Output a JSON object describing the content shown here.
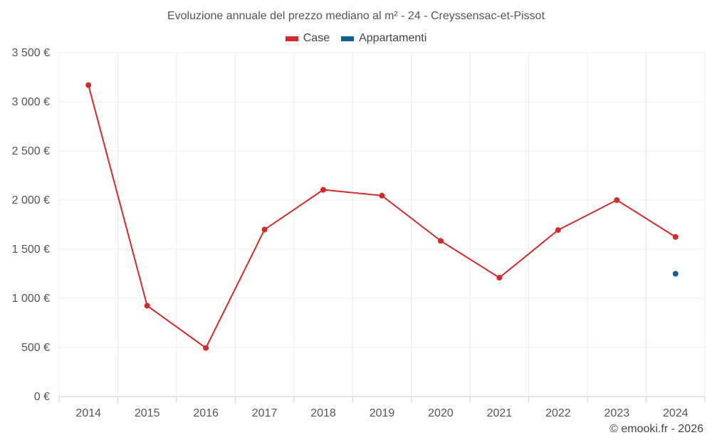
{
  "chart_data": {
    "type": "line",
    "title": "Evoluzione annuale del prezzo mediano al m² - 24 - Creyssensac-et-Pissot",
    "categories": [
      "2014",
      "2015",
      "2016",
      "2017",
      "2018",
      "2019",
      "2020",
      "2021",
      "2022",
      "2023",
      "2024"
    ],
    "series": [
      {
        "name": "Case",
        "color": "#d42a2a",
        "values": [
          3170,
          925,
          495,
          1700,
          2105,
          2045,
          1585,
          1210,
          1695,
          2000,
          1625
        ]
      },
      {
        "name": "Appartamenti",
        "color": "#0e6199",
        "values": [
          null,
          null,
          null,
          null,
          null,
          null,
          null,
          null,
          null,
          null,
          1250
        ]
      }
    ],
    "y_ticks": [
      0,
      500,
      1000,
      1500,
      2000,
      2500,
      3000,
      3500
    ],
    "y_tick_labels": [
      "0 €",
      "500 €",
      "1 000 €",
      "1 500 €",
      "2 000 €",
      "2 500 €",
      "3 000 €",
      "3 500 €"
    ],
    "ylim": [
      0,
      3500
    ],
    "xlabel": "",
    "ylabel": "",
    "grid": true,
    "legend_position": "top-center"
  },
  "credit": "© emooki.fr - 2026"
}
